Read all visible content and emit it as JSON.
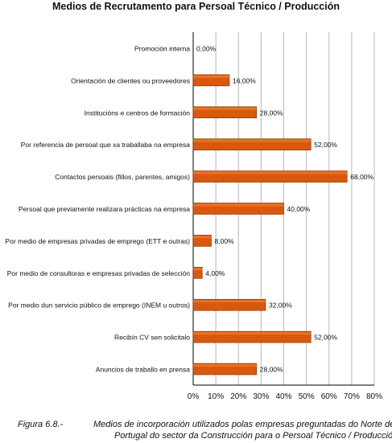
{
  "chart_data": {
    "type": "bar",
    "orientation": "horizontal",
    "title": "Medios de Recrutamento para Persoal Técnico / Producción",
    "categories": [
      "Promoción interna",
      "Orientación de clientes ou proveedores",
      "Institucións e centros de formación",
      "Por referencia de persoal que xa traballaba na empresa",
      "Contactos persoais (fillos, parentes, amigos)",
      "Persoal que previamente realizara prácticas na empresa",
      "Por medio de empresas privadas de emprego (ETT e outras)",
      "Por medio de consultoras e empresas privadas de selección",
      "Por medio dun servicio público de emprego (INEM u outros)",
      "Recibín CV sen solicitalo",
      "Anuncios de traballo en prensa"
    ],
    "values": [
      0,
      16,
      28,
      52,
      68,
      40,
      8,
      4,
      32,
      52,
      28
    ],
    "value_labels": [
      "0,00%",
      "16,00%",
      "28,00%",
      "52,00%",
      "68,00%",
      "40,00%",
      "8,00%",
      "4,00%",
      "32,00%",
      "52,00%",
      "28,00%"
    ],
    "xlim": [
      0,
      80
    ],
    "xticks": [
      "0%",
      "10%",
      "20%",
      "30%",
      "40%",
      "50%",
      "60%",
      "70%",
      "80%"
    ],
    "grid": true,
    "colors": {
      "bar": "#d9580f",
      "bar_edge": "#7a2c00",
      "grid": "#b8b8b8",
      "axis": "#000000"
    }
  },
  "caption": {
    "label": "Figura 6.8.-",
    "line1": "Medios de incorporación utilizados polas empresas preguntadas do Norte de",
    "line2": "Portugal do sector da Construcción para o Persoal Técnico / Producción"
  }
}
